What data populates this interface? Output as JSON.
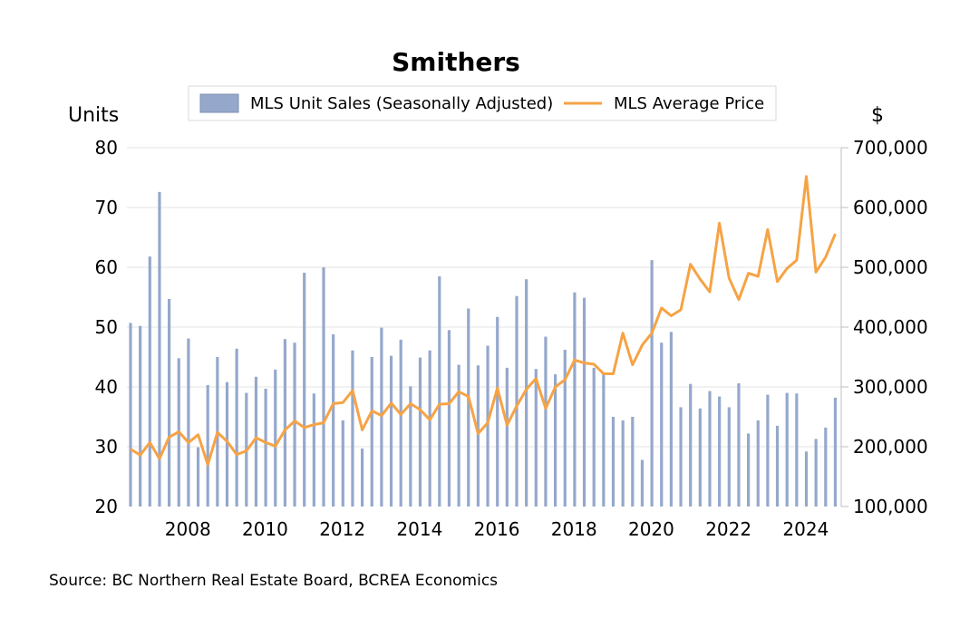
{
  "chart_data": {
    "type": "bar+line",
    "title": "Smithers",
    "y_left_label": "Units",
    "y_right_label": "$",
    "y_left_range": [
      20,
      80
    ],
    "y_right_range": [
      100000,
      700000
    ],
    "y_left_ticks": [
      "20",
      "30",
      "40",
      "50",
      "60",
      "70",
      "80"
    ],
    "y_right_ticks": [
      "100,000",
      "200,000",
      "300,000",
      "400,000",
      "500,000",
      "600,000",
      "700,000"
    ],
    "x_ticks": [
      {
        "label": "2008",
        "x": 2008
      },
      {
        "label": "2010",
        "x": 2010
      },
      {
        "label": "2012",
        "x": 2012
      },
      {
        "label": "2014",
        "x": 2014
      },
      {
        "label": "2016",
        "x": 2016
      },
      {
        "label": "2018",
        "x": 2018
      },
      {
        "label": "2020",
        "x": 2020
      },
      {
        "label": "2022",
        "x": 2022
      },
      {
        "label": "2024",
        "x": 2024
      }
    ],
    "grid": "horizontal",
    "legend_position": "top-center",
    "x_start": 2006.75,
    "x_step": 0.25,
    "series": [
      {
        "name": "MLS Unit Sales (Seasonally Adjusted)",
        "kind": "bar",
        "axis": "left",
        "color": "#95a8cc",
        "values": [
          50.7,
          50.2,
          61.8,
          72.6,
          54.7,
          44.8,
          48.1,
          29.9,
          40.3,
          45.0,
          40.8,
          46.4,
          39.0,
          41.7,
          39.7,
          42.9,
          48.0,
          47.4,
          59.1,
          38.9,
          60.0,
          48.8,
          34.4,
          46.1,
          29.7,
          45.0,
          49.9,
          45.2,
          47.9,
          40.1,
          44.9,
          46.1,
          58.5,
          49.5,
          43.7,
          53.1,
          43.6,
          46.9,
          51.7,
          43.2,
          55.2,
          58.0,
          43.0,
          48.4,
          42.1,
          46.2,
          55.8,
          54.9,
          43.2,
          42.4,
          35.0,
          34.4,
          35.0,
          27.8,
          61.2,
          47.4,
          49.2,
          36.6,
          40.5,
          36.4,
          39.3,
          38.4,
          36.6,
          40.6,
          32.2,
          34.4,
          38.7,
          33.5,
          39.0,
          38.9,
          29.2,
          31.3,
          33.2,
          38.2
        ]
      },
      {
        "name": "MLS Average Price",
        "kind": "line",
        "axis": "right",
        "color": "#f6a345",
        "values": [
          196000,
          186000,
          207000,
          180000,
          216000,
          225000,
          207000,
          220000,
          170000,
          224000,
          209000,
          187000,
          193000,
          215000,
          207000,
          201000,
          228000,
          243000,
          232000,
          237000,
          240000,
          272000,
          274000,
          294000,
          228000,
          260000,
          252000,
          273000,
          254000,
          272000,
          262000,
          245000,
          271000,
          272000,
          292000,
          284000,
          222000,
          240000,
          298000,
          236000,
          268000,
          296000,
          314000,
          264000,
          300000,
          312000,
          345000,
          340000,
          338000,
          322000,
          322000,
          390000,
          337000,
          370000,
          390000,
          432000,
          419000,
          429000,
          505000,
          480000,
          459000,
          574000,
          482000,
          446000,
          490000,
          485000,
          563000,
          476000,
          498000,
          512000,
          652000,
          492000,
          517000,
          556000
        ]
      }
    ]
  },
  "source": "Source:  BC Northern Real Estate Board, BCREA Economics",
  "colors": {
    "bar": "#95a8cc",
    "line": "#f6a345",
    "grid": "#e3e3e3"
  }
}
